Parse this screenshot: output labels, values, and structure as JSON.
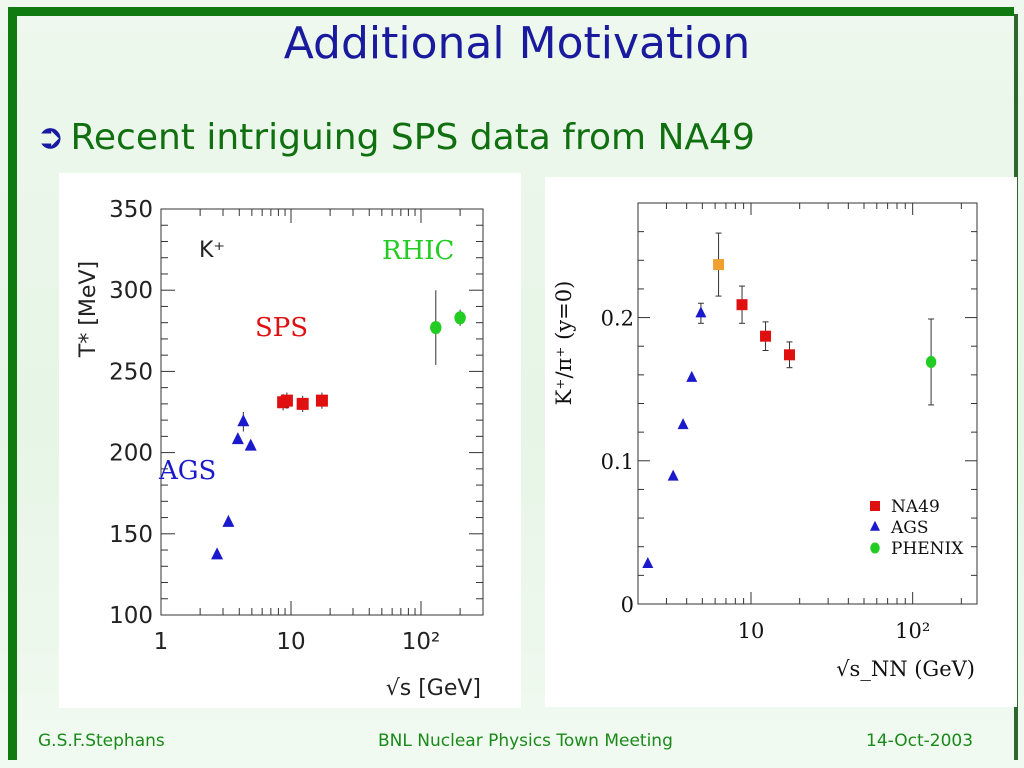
{
  "slide": {
    "title": "Additional Motivation",
    "bullet_icon": "right-arrow-circle-icon",
    "bullet": "Recent intriguing SPS data from NA49"
  },
  "footer": {
    "left": "G.S.F.Stephans",
    "center": "BNL Nuclear Physics Town Meeting",
    "right": "14-Oct-2003"
  },
  "colors": {
    "frame": "#0f7a0f",
    "title": "#1a1a9e",
    "text": "#107010",
    "sps": "#e01010",
    "ags": "#1a1acc",
    "rhic": "#22cc22",
    "highlight": "#f0a030"
  },
  "chart_data": [
    {
      "type": "scatter",
      "xscale": "log",
      "xlim": [
        1,
        300
      ],
      "ylim": [
        100,
        350
      ],
      "xlabel": "√s [GeV]",
      "ylabel": "T* [MeV]",
      "x_ticks": [
        "1",
        "10",
        "10²"
      ],
      "y_ticks": [
        "100",
        "150",
        "200",
        "250",
        "300",
        "350"
      ],
      "particle_label": "K⁺",
      "series": [
        {
          "name": "AGS",
          "marker": "triangle",
          "color": "#1a1acc",
          "points": [
            [
              2.7,
              137,
              0
            ],
            [
              3.3,
              157,
              0
            ],
            [
              3.9,
              208,
              0
            ],
            [
              4.3,
              219,
              6
            ],
            [
              4.9,
              204,
              0
            ]
          ]
        },
        {
          "name": "SPS",
          "marker": "square",
          "color": "#e01010",
          "points": [
            [
              8.7,
              231,
              5
            ],
            [
              9.3,
              232,
              5
            ],
            [
              12.3,
              230,
              5
            ],
            [
              17.3,
              232,
              5
            ]
          ]
        },
        {
          "name": "RHIC",
          "marker": "circle",
          "color": "#22cc22",
          "points": [
            [
              130,
              277,
              23
            ],
            [
              200,
              283,
              5
            ]
          ]
        }
      ]
    },
    {
      "type": "scatter",
      "xscale": "log",
      "xlim": [
        2,
        250
      ],
      "ylim": [
        0,
        0.28
      ],
      "xlabel": "√s_NN (GeV)",
      "ylabel": "K⁺/π⁺ (y=0)",
      "x_ticks": [
        "10",
        "10²"
      ],
      "y_ticks": [
        "0",
        "0.1",
        "0.2"
      ],
      "legend_position": "bottom-right",
      "series": [
        {
          "name": "NA49",
          "marker": "square",
          "color": "#e01010",
          "points": [
            [
              6.3,
              0.237,
              0.022
            ],
            [
              8.8,
              0.209,
              0.013
            ],
            [
              12.3,
              0.187,
              0.01
            ],
            [
              17.3,
              0.174,
              0.009
            ]
          ]
        },
        {
          "name": "AGS",
          "marker": "triangle",
          "color": "#1a1acc",
          "points": [
            [
              2.3,
              0.028,
              0
            ],
            [
              3.3,
              0.089,
              0
            ],
            [
              3.8,
              0.125,
              0
            ],
            [
              4.3,
              0.158,
              0
            ],
            [
              4.9,
              0.203,
              0.007
            ]
          ]
        },
        {
          "name": "PHENIX",
          "marker": "circle",
          "color": "#22cc22",
          "points": [
            [
              130,
              0.169,
              0.03
            ]
          ]
        }
      ]
    }
  ]
}
